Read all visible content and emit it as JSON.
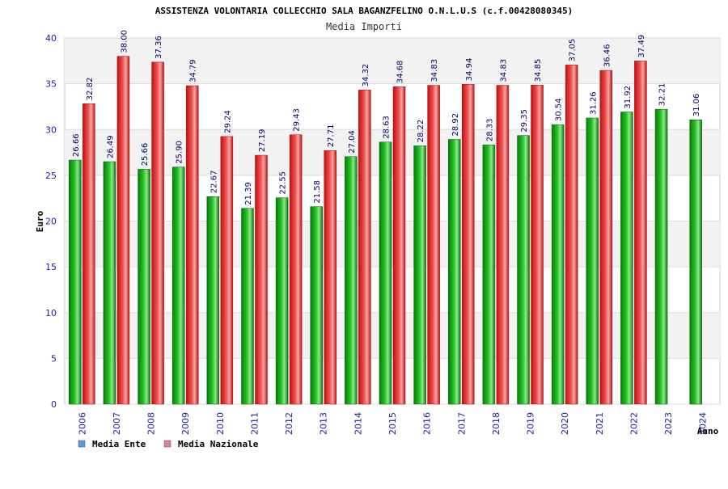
{
  "chart_data": {
    "type": "bar",
    "title": "ASSISTENZA VOLONTARIA COLLECCHIO SALA BAGANZFELINO O.N.L.U.S (c.f.00428080345)",
    "subtitle": "Media Importi",
    "xlabel": "Anno",
    "ylabel": "Euro",
    "ylim": [
      0,
      40
    ],
    "yticks": [
      0,
      5,
      10,
      15,
      20,
      25,
      30,
      35,
      40
    ],
    "categories": [
      "2006",
      "2007",
      "2008",
      "2009",
      "2010",
      "2011",
      "2012",
      "2013",
      "2014",
      "2015",
      "2016",
      "2017",
      "2018",
      "2019",
      "2020",
      "2021",
      "2022",
      "2023",
      "2024"
    ],
    "series": [
      {
        "name": "Media Ente",
        "color": "#1aa01a",
        "values": [
          26.66,
          26.49,
          25.66,
          25.9,
          22.67,
          21.39,
          22.55,
          21.58,
          27.04,
          28.63,
          28.22,
          28.92,
          28.33,
          29.35,
          30.54,
          31.26,
          31.92,
          32.21,
          31.06
        ],
        "labels": [
          "26.66",
          "26.49",
          "25.66",
          "25.90",
          "22.67",
          "21.39",
          "22.55",
          "21.58",
          "27.04",
          "28.63",
          "28.22",
          "28.92",
          "28.33",
          "29.35",
          "30.54",
          "31.26",
          "31.92",
          "32.21",
          "31.06"
        ]
      },
      {
        "name": "Media Nazionale",
        "color": "#e02020",
        "values": [
          32.82,
          38.0,
          37.36,
          34.79,
          29.24,
          27.19,
          29.43,
          27.71,
          34.32,
          34.68,
          34.83,
          34.94,
          34.83,
          34.85,
          37.05,
          36.46,
          37.49,
          null,
          null
        ],
        "labels": [
          "32.82",
          "38.00",
          "37.36",
          "34.79",
          "29.24",
          "27.19",
          "29.43",
          "27.71",
          "34.32",
          "34.68",
          "34.83",
          "34.94",
          "34.83",
          "34.85",
          "37.05",
          "36.46",
          "37.49",
          "",
          ""
        ]
      }
    ],
    "legend": [
      {
        "label": "Media Ente",
        "swatch": "#5b9bd5"
      },
      {
        "label": "Media Nazionale",
        "swatch": "#e07aa8"
      }
    ],
    "legend_position": "bottom-left",
    "grid": true
  }
}
